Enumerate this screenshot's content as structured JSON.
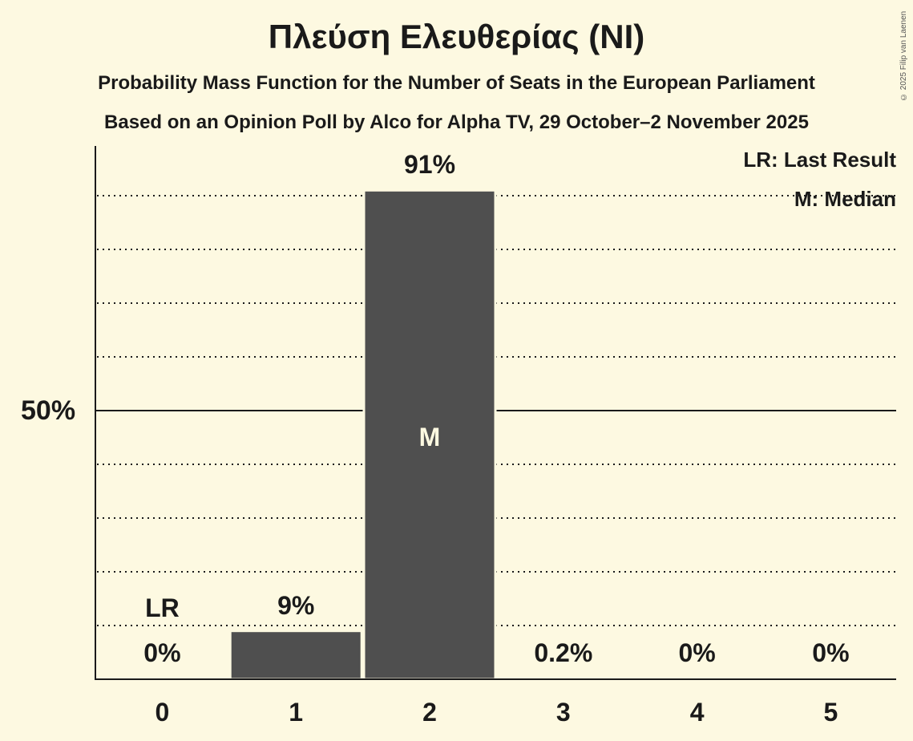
{
  "chart_data": {
    "type": "bar",
    "title": "Πλεύση Ελευθερίας (NI)",
    "subtitle": "Probability Mass Function for the Number of Seats in the European Parliament",
    "subtitle2": "Based on an Opinion Poll by Alco for Alpha TV, 29 October–2 November 2025",
    "categories": [
      "0",
      "1",
      "2",
      "3",
      "4",
      "5"
    ],
    "values": [
      0,
      9,
      91,
      0.2,
      0,
      0
    ],
    "value_labels": [
      "0%",
      "9%",
      "91%",
      "0.2%",
      "0%",
      "0%"
    ],
    "xlabel": "",
    "ylabel": "",
    "ylim": [
      0,
      100
    ],
    "yticks": [
      {
        "value": 50,
        "label": "50%"
      }
    ],
    "gridlines": [
      10,
      20,
      30,
      40,
      60,
      70,
      80,
      90
    ],
    "grid": true,
    "last_result_seat": 0,
    "median_seat": 2,
    "annotations": {
      "last_result_marker": "LR",
      "median_marker": "M"
    },
    "legend": [
      "LR: Last Result",
      "M: Median"
    ],
    "legend_position": "top-right",
    "bar_color": "#4f4f4f",
    "background_color": "#fdf9e1"
  },
  "copyright": "© 2025 Filip van Laenen"
}
